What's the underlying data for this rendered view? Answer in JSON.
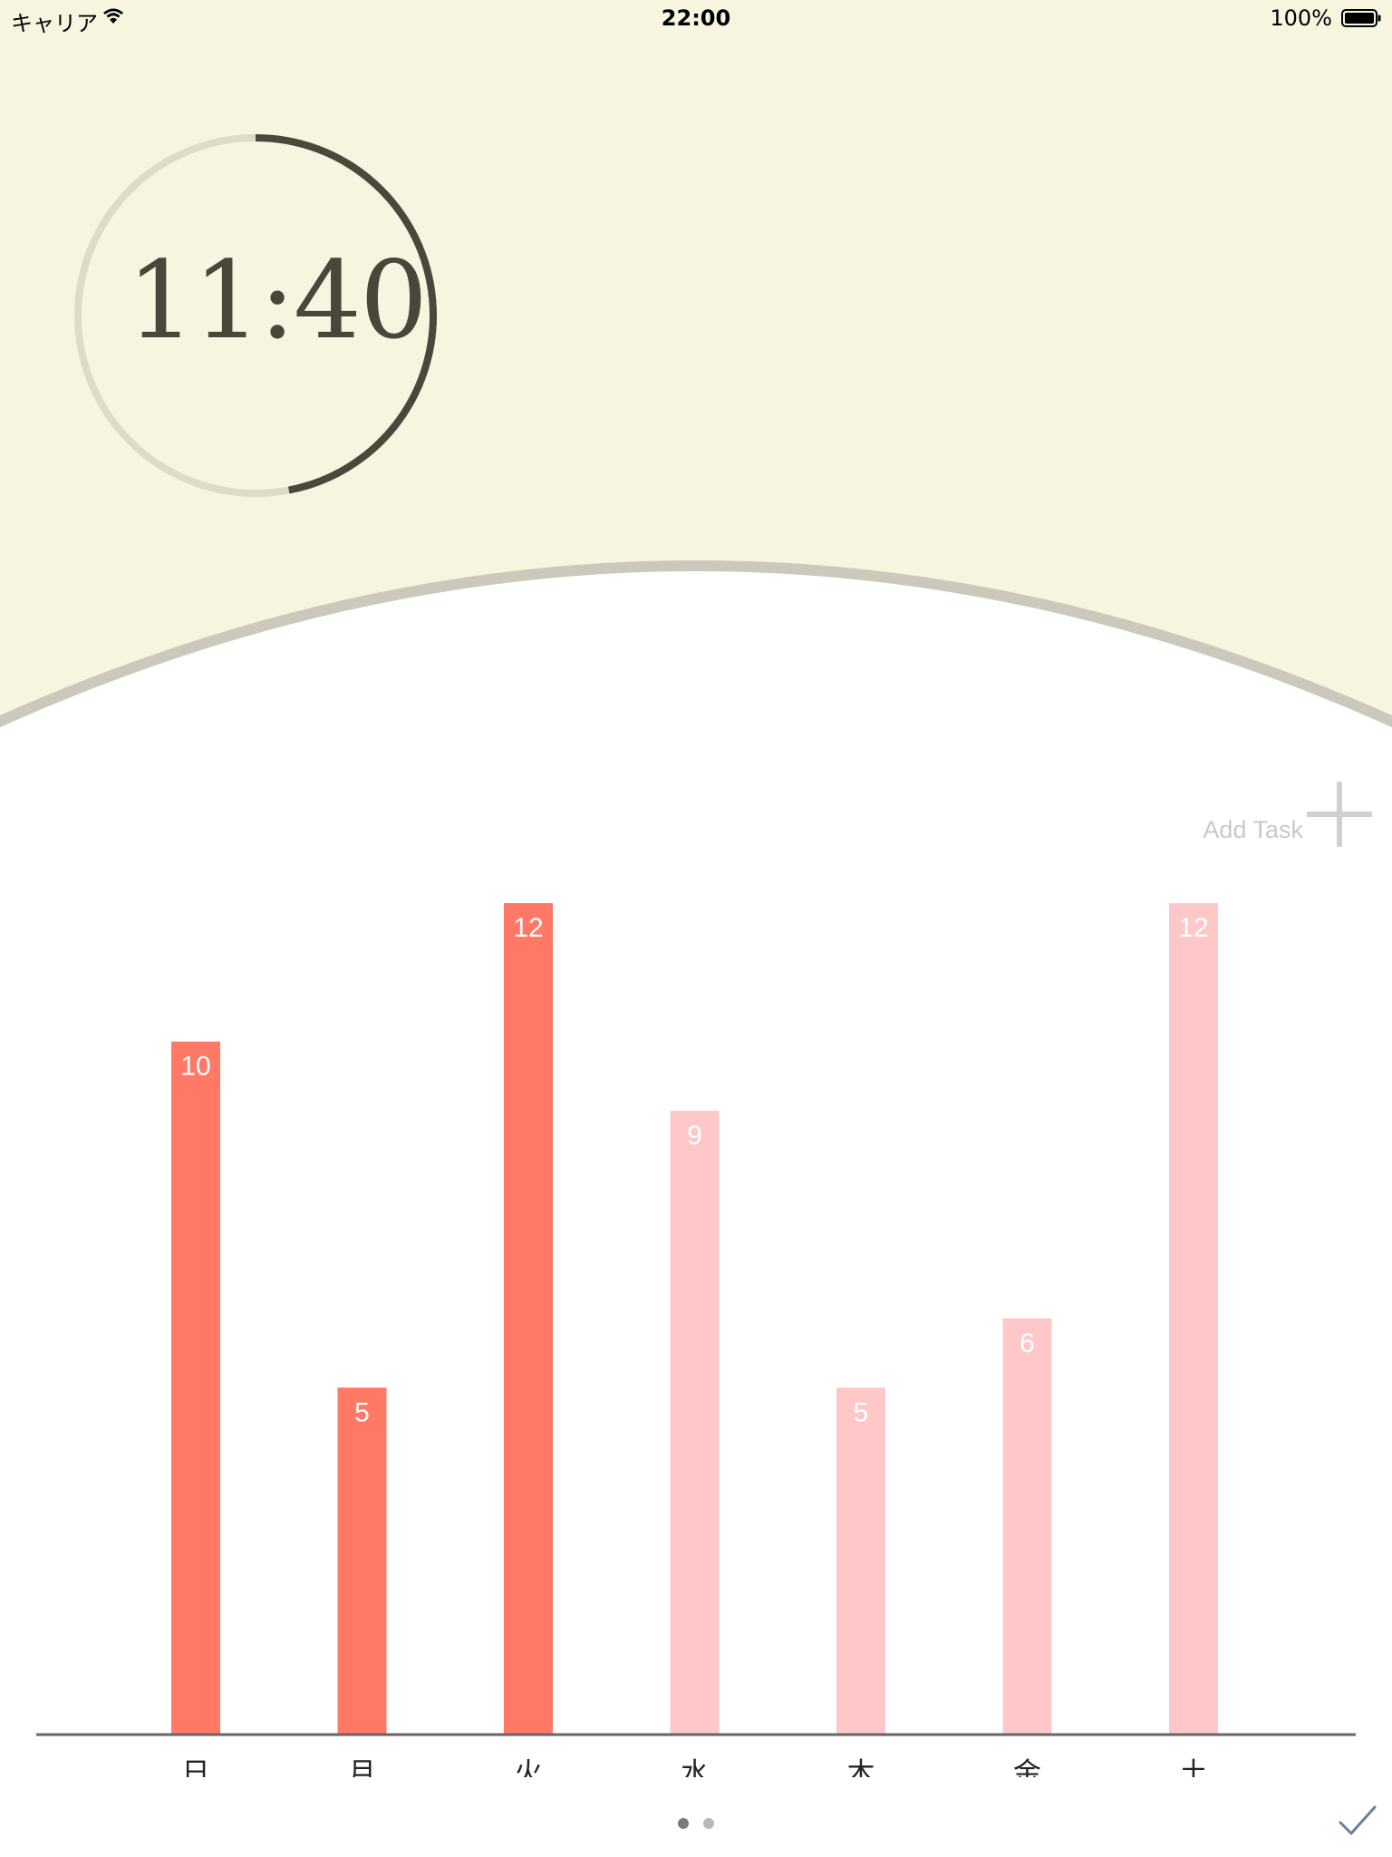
{
  "status_bar": {
    "carrier": "キャリア",
    "time": "22:00",
    "battery": "100%"
  },
  "timer": {
    "display": "11:40",
    "progress": 0.47
  },
  "add_task": {
    "label": "Add Task"
  },
  "chart_data": {
    "type": "bar",
    "categories": [
      "日",
      "月",
      "火",
      "水",
      "木",
      "金",
      "土"
    ],
    "values": [
      10,
      5,
      12,
      9,
      5,
      6,
      12
    ],
    "value_labels": [
      "10",
      "5",
      "12",
      "9",
      "5",
      "6",
      "12"
    ],
    "ylim": [
      0,
      12
    ],
    "grid": false,
    "bar_colors": [
      "#ff7966",
      "#ff7966",
      "#ff7966",
      "#ffc8c8",
      "#ffc8c8",
      "#ffc8c8",
      "#ffc8c8"
    ]
  },
  "colors": {
    "top_bg": "#f7f5e0",
    "ring_track": "#dedbc8",
    "ring_progress": "#4b473a",
    "arc": "#ccc8bb",
    "axis": "#666666"
  },
  "pager": {
    "pages": 2,
    "current": 0
  }
}
